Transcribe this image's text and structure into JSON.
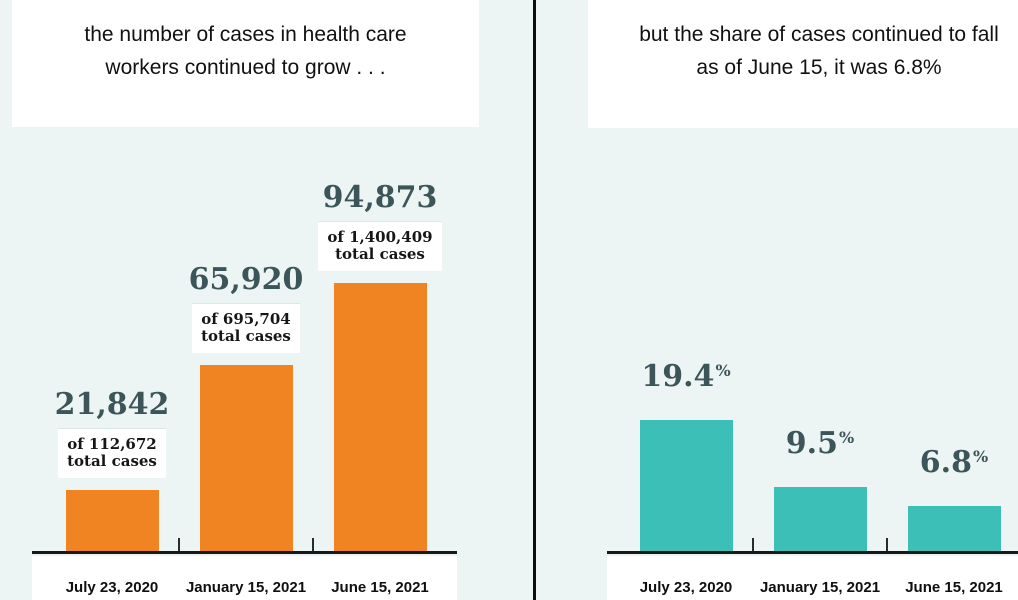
{
  "panels": {
    "left": {
      "title_line1": "the number of cases in health care",
      "title_line2": "workers continued to grow . . ."
    },
    "right": {
      "title_line1": "but the share of cases continued to fall",
      "title_line2": "as of June 15, it was 6.8%"
    }
  },
  "colors": {
    "background": "#EDF4F4",
    "orange_bar": "#F08322",
    "teal_bar": "#3BBFB6",
    "number_text": "#3B5559",
    "divider": "#0D0D0D",
    "axis": "#181818",
    "title_text": "#111111",
    "box_background": "#FFFFFF"
  },
  "chart_data": [
    {
      "type": "bar",
      "title": "the number of cases in health care workers continued to grow . . .",
      "categories": [
        "July 23, 2020",
        "January 15, 2021",
        "June 15, 2021"
      ],
      "values": [
        21842,
        65920,
        94873
      ],
      "value_labels": [
        "21,842",
        "65,920",
        "94,873"
      ],
      "value_suffix": "",
      "sub_labels": [
        [
          "of 112,672",
          "total cases"
        ],
        [
          "of 695,704",
          "total cases"
        ],
        [
          "of 1,400,409",
          "total cases"
        ]
      ],
      "bar_color": "#F08322",
      "ylim": [
        0,
        94873
      ],
      "grid": false,
      "legend": "none",
      "xlabel": "",
      "ylabel": ""
    },
    {
      "type": "bar",
      "title": "but the share of cases continued to fall as of June 15, it was 6.8%",
      "categories": [
        "July 23, 2020",
        "January 15, 2021",
        "June 15, 2021"
      ],
      "values": [
        19.4,
        9.5,
        6.8
      ],
      "value_labels": [
        "19.4",
        "9.5",
        "6.8"
      ],
      "value_suffix": "%",
      "sub_labels": null,
      "bar_color": "#3BBFB6",
      "ylim": [
        0,
        19.4
      ],
      "grid": false,
      "legend": "none",
      "xlabel": "",
      "ylabel": ""
    }
  ]
}
